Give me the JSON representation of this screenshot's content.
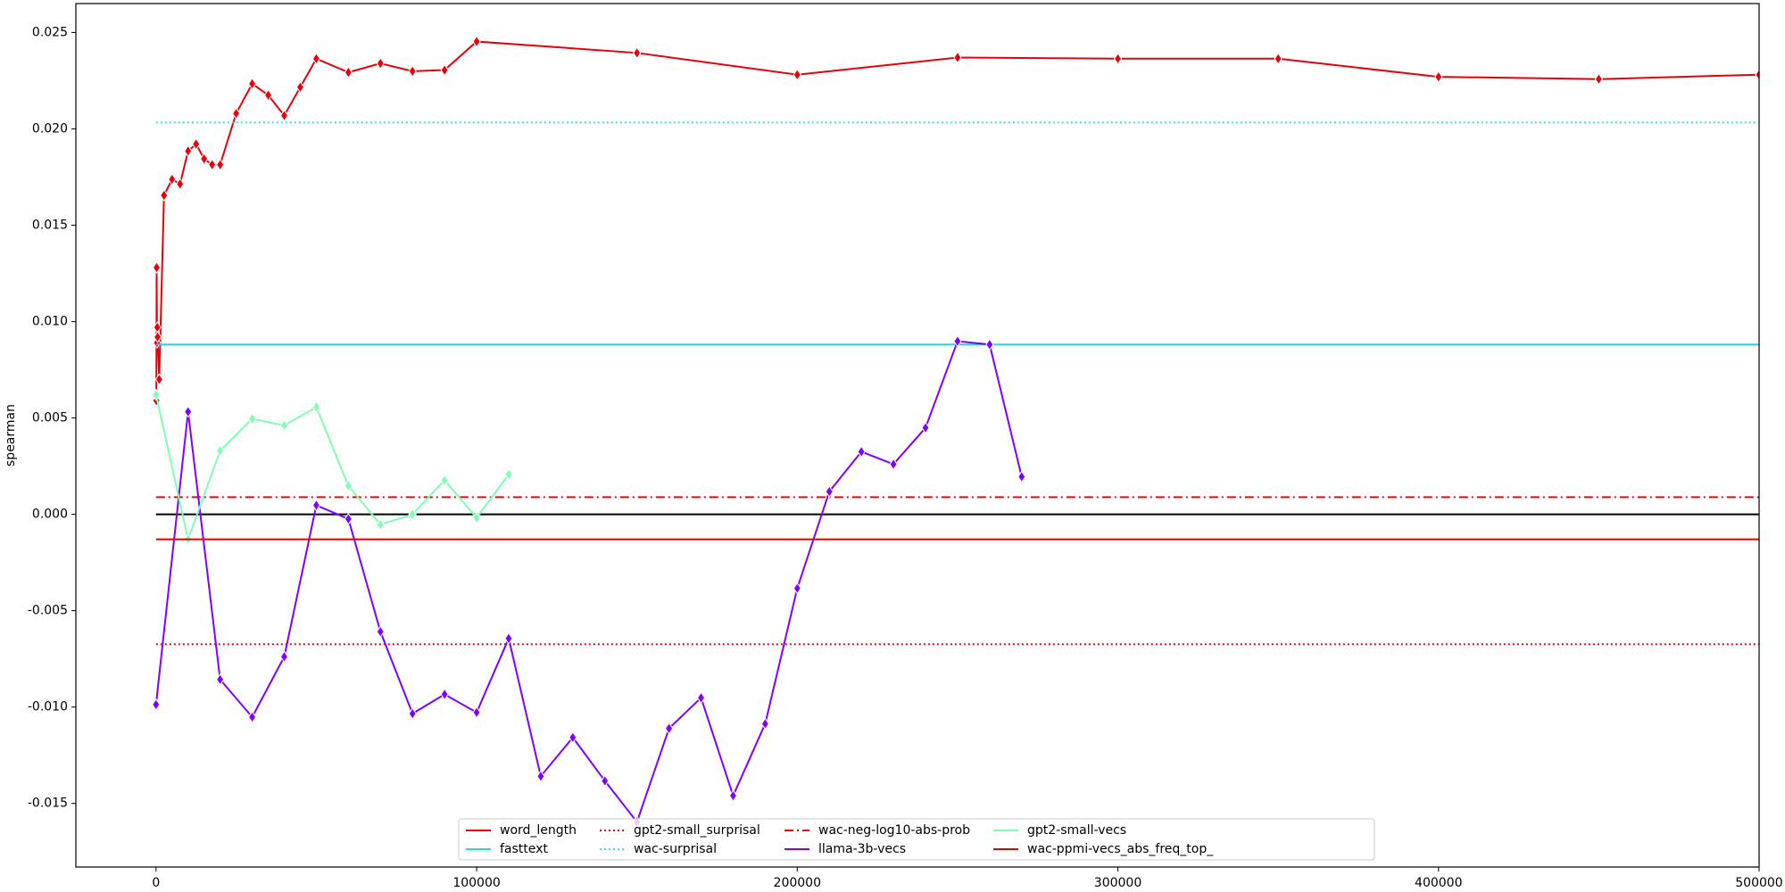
{
  "chart_data": {
    "type": "line",
    "y_label": "spearman",
    "xlim": [
      -25000,
      500000
    ],
    "xticks": [
      0,
      100000,
      200000,
      300000,
      400000,
      500000
    ],
    "ylim": [
      -0.0183,
      0.0265
    ],
    "yticks": [
      {
        "value": -0.015,
        "label": "-0.015"
      },
      {
        "value": -0.01,
        "label": "-0.010"
      },
      {
        "value": -0.005,
        "label": "-0.005"
      },
      {
        "value": 0,
        "label": "0.000"
      },
      {
        "value": 0.005,
        "label": "0.005"
      },
      {
        "value": 0.01,
        "label": "0.010"
      },
      {
        "value": 0.015,
        "label": "0.015"
      },
      {
        "value": 0.02,
        "label": "0.020"
      },
      {
        "value": 0.025,
        "label": "0.025"
      }
    ],
    "reference_line": {
      "value": 0,
      "color": "#000000"
    },
    "legend": "lower center",
    "legend_columns": 5,
    "series": [
      {
        "name": "word_length",
        "color": "#e8000b",
        "dash": "solid",
        "marker": "diamond",
        "x": [
          100,
          200,
          300,
          400,
          500,
          1000,
          2500,
          5000,
          7500,
          10000,
          12500,
          15000,
          17500,
          20000,
          25000,
          30000,
          35000,
          40000,
          45000,
          50000,
          60000,
          70000,
          80000,
          90000,
          100000,
          150000,
          200000,
          250000,
          300000,
          350000,
          400000,
          450000,
          500000
        ],
        "values": [
          0.0059,
          0.0128,
          0.0089,
          0.0097,
          0.0092,
          0.007,
          0.01655,
          0.01738,
          0.01714,
          0.01885,
          0.01921,
          0.01844,
          0.01814,
          0.01814,
          0.0208,
          0.02234,
          0.02175,
          0.02069,
          0.02216,
          0.02364,
          0.02293,
          0.0234,
          0.02299,
          0.02305,
          0.02453,
          0.02394,
          0.02281,
          0.0237,
          0.02364,
          0.02364,
          0.0227,
          0.02258,
          0.02281
        ]
      },
      {
        "name": "fasttext",
        "color": "#2ad6d6",
        "dash": "solid",
        "x": [
          0,
          500000
        ],
        "values": [
          0.00881,
          0.00881
        ]
      },
      {
        "name": "gpt2-small_surprisal",
        "color": "#d0101a",
        "dash": "dotted",
        "x": [
          0,
          500000
        ],
        "values": [
          -0.00674,
          -0.00674
        ]
      },
      {
        "name": "wac-surprisal",
        "color": "#30e8e0",
        "dash": "dotted",
        "x": [
          0,
          500000
        ],
        "values": [
          0.02033,
          0.02033
        ]
      },
      {
        "name": "wac-neg-log10-abs-prob",
        "color": "#d81010",
        "dash": "dashdot",
        "x": [
          0,
          500000
        ],
        "values": [
          0.00089,
          0.00089
        ]
      },
      {
        "name": "llama-3b-vecs",
        "color": "#8000ff",
        "dash": "solid",
        "marker": "diamond",
        "x": [
          0,
          10000,
          20000,
          30000,
          40000,
          50000,
          60000,
          70000,
          80000,
          90000,
          100000,
          110000,
          120000,
          130000,
          140000,
          150000,
          160000,
          170000,
          180000,
          190000,
          200000,
          210000,
          220000,
          230000,
          240000,
          250000,
          260000,
          270000
        ],
        "values": [
          -0.00987,
          0.00532,
          -0.00857,
          -0.01052,
          -0.00739,
          0.00047,
          -0.00024,
          -0.00609,
          -0.01034,
          -0.00934,
          -0.01028,
          -0.00644,
          -0.01359,
          -0.01158,
          -0.01383,
          -0.01596,
          -0.01111,
          -0.00952,
          -0.0146,
          -0.01087,
          -0.00384,
          0.00118,
          0.00325,
          0.0026,
          0.00449,
          0.00898,
          0.00881,
          0.00195
        ]
      },
      {
        "name": "gpt2-small-vecs",
        "color": "#80ffb4",
        "dash": "solid",
        "marker": "diamond",
        "x": [
          0,
          10000,
          20000,
          30000,
          40000,
          50000,
          60000,
          70000,
          80000,
          90000,
          100000,
          110000
        ],
        "values": [
          0.0062,
          -0.0013,
          0.0033,
          0.00496,
          0.00461,
          0.00556,
          0.00148,
          -0.00053,
          0.0,
          0.00177,
          -0.00018,
          0.00207
        ]
      },
      {
        "name": "wac-ppmi-vecs_abs_freq_top_",
        "color": "#e00000",
        "dash": "solid",
        "x": [
          0,
          500000
        ],
        "values": [
          -0.0013,
          -0.0013
        ]
      }
    ]
  }
}
